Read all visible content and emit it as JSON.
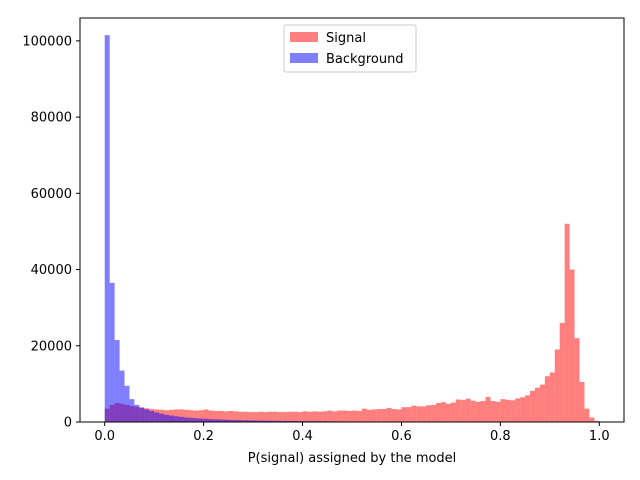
{
  "chart_data": {
    "type": "bar",
    "subtype": "histogram",
    "title": "",
    "xlabel": "P(signal) assigned by the model",
    "ylabel": "",
    "xlim": [
      -0.05,
      1.05
    ],
    "ylim": [
      0,
      106000
    ],
    "bin_width": 0.01,
    "bin_start": 0.0,
    "grid": false,
    "legend_position": "top-center",
    "x_ticks": [
      {
        "value": 0.0,
        "label": "0.0"
      },
      {
        "value": 0.2,
        "label": "0.2"
      },
      {
        "value": 0.4,
        "label": "0.4"
      },
      {
        "value": 0.6,
        "label": "0.6"
      },
      {
        "value": 0.8,
        "label": "0.8"
      },
      {
        "value": 1.0,
        "label": "1.0"
      }
    ],
    "y_ticks": [
      {
        "value": 0,
        "label": "0"
      },
      {
        "value": 20000,
        "label": "20000"
      },
      {
        "value": 40000,
        "label": "40000"
      },
      {
        "value": 60000,
        "label": "60000"
      },
      {
        "value": 80000,
        "label": "80000"
      },
      {
        "value": 100000,
        "label": "100000"
      }
    ],
    "series": [
      {
        "name": "Signal",
        "color": "#ff0000",
        "alpha": 0.5,
        "values": [
          3500,
          4500,
          5000,
          4800,
          4500,
          4200,
          4000,
          3800,
          3600,
          3400,
          3300,
          3200,
          3100,
          3200,
          3300,
          3300,
          3200,
          3100,
          3000,
          3100,
          3300,
          3000,
          2900,
          2900,
          2800,
          2900,
          2800,
          2700,
          2700,
          2600,
          2600,
          2700,
          2600,
          2700,
          2700,
          2600,
          2600,
          2700,
          2700,
          2600,
          2800,
          2700,
          2800,
          2700,
          2800,
          3000,
          2800,
          3000,
          3000,
          2900,
          3000,
          2900,
          3500,
          3200,
          3300,
          3400,
          3400,
          3700,
          3400,
          3300,
          3900,
          3900,
          4300,
          4100,
          4100,
          4400,
          4500,
          5000,
          5200,
          4800,
          5100,
          5900,
          5800,
          6100,
          5600,
          5300,
          5500,
          6600,
          5500,
          5300,
          6000,
          5800,
          5700,
          6200,
          6500,
          7000,
          8200,
          9000,
          9800,
          12000,
          13000,
          19000,
          26000,
          52000,
          40000,
          22000,
          10500,
          3500,
          1200,
          300
        ]
      },
      {
        "name": "Background",
        "color": "#0000ff",
        "alpha": 0.5,
        "values": [
          101500,
          36500,
          21500,
          13500,
          9500,
          6000,
          4500,
          3800,
          3300,
          2900,
          2500,
          2200,
          1900,
          1700,
          1500,
          1350,
          1200,
          1100,
          1000,
          900,
          850,
          750,
          700,
          650,
          600,
          550,
          500,
          480,
          450,
          420,
          400,
          380,
          360,
          340,
          320,
          300,
          280,
          260,
          250,
          240,
          230,
          220,
          210,
          200,
          190,
          180,
          170,
          160,
          150,
          145,
          140,
          135,
          130,
          125,
          120,
          115,
          110,
          105,
          100,
          95,
          90,
          88,
          85,
          82,
          80,
          78,
          76,
          74,
          72,
          70,
          68,
          66,
          64,
          62,
          60,
          58,
          56,
          54,
          52,
          50,
          48,
          46,
          44,
          42,
          40,
          38,
          36,
          34,
          32,
          30,
          28,
          26,
          24,
          22,
          20,
          18,
          16,
          14,
          12,
          10
        ]
      }
    ]
  }
}
